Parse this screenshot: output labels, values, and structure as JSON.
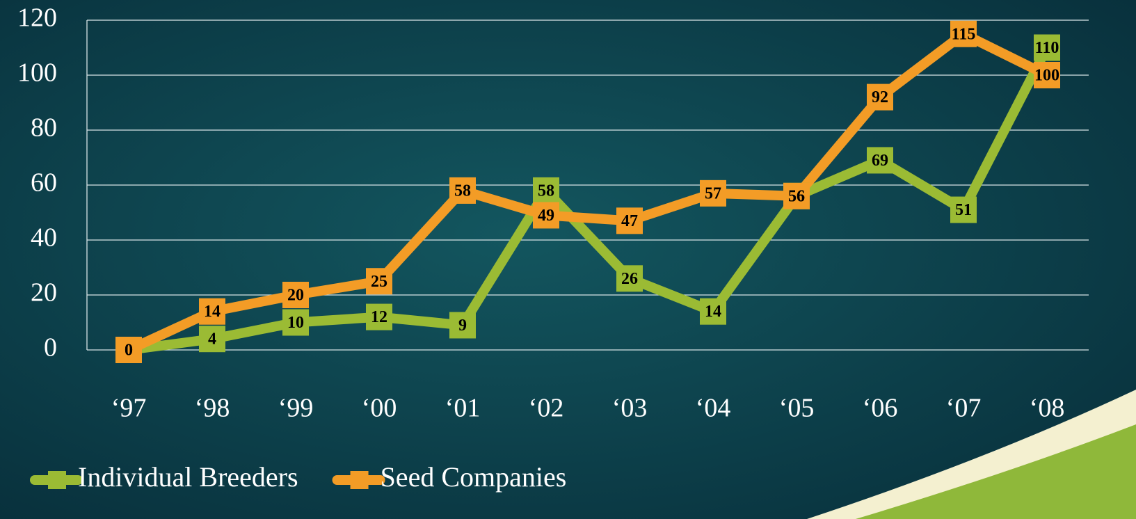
{
  "chart_data": {
    "type": "line",
    "categories": [
      "‘97",
      "‘98",
      "‘99",
      "‘00",
      "‘01",
      "‘02",
      "‘03",
      "‘04",
      "‘05",
      "‘06",
      "‘07",
      "‘08"
    ],
    "series": [
      {
        "name": "Individual Breeders",
        "color": "#9bbb34",
        "values": [
          0,
          4,
          10,
          12,
          9,
          58,
          26,
          14,
          56,
          69,
          51,
          110
        ]
      },
      {
        "name": "Seed Companies",
        "color": "#f39c26",
        "values": [
          0,
          14,
          20,
          25,
          58,
          49,
          47,
          57,
          56,
          92,
          115,
          100
        ]
      }
    ],
    "ylim": [
      0,
      120
    ],
    "yticks": [
      0,
      20,
      40,
      60,
      80,
      100,
      120
    ],
    "grid": true,
    "legend": "bottom-left"
  }
}
